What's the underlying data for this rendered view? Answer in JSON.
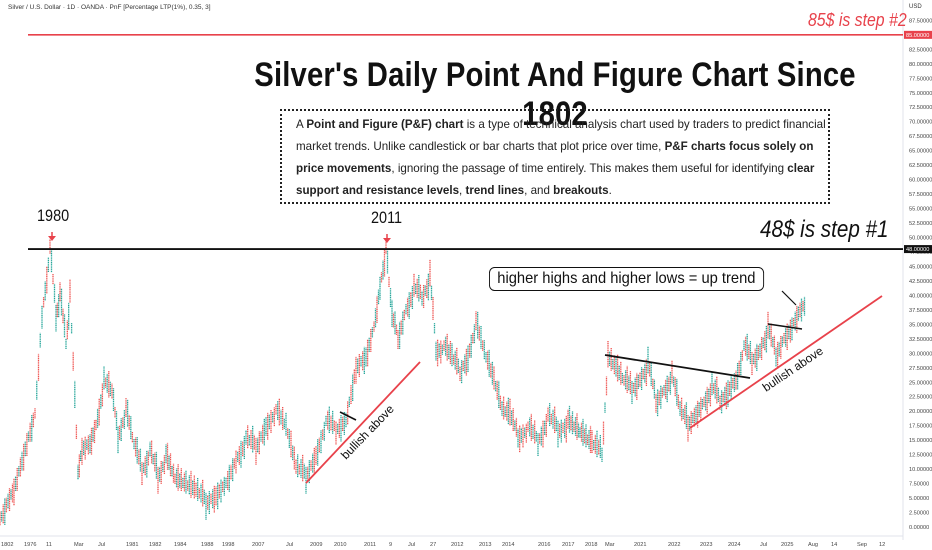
{
  "header": {
    "symbol_line": "Silver / U.S. Dollar · 1D · OANDA · PnF [Percentage LTP(1%), 0.35, 3]",
    "currency": "USD"
  },
  "title": "Silver's Daily Point And Figure Chart Since 1802",
  "description": {
    "p1": "A ",
    "b1": "Point and Figure (P&F) chart",
    "p2": " is a type of technical analysis chart used by traders to predict financial market trends. Unlike candlestick or bar charts that plot price over time, ",
    "b2": "P&F charts focus solely on price movements",
    "p3": ", ignoring the passage of time entirely. This makes them useful for identifying ",
    "b3": "clear support and resistance levels",
    "p4": ", ",
    "b4": "trend lines",
    "p5": ", and ",
    "b5": "breakouts",
    "p6": "."
  },
  "annotations": {
    "step2": "85$ is step #2",
    "step1": "48$ is step #1",
    "callout": "higher highs and higher lows = up trend",
    "year_1980": "1980",
    "year_2011": "2011",
    "bullish_1": "bullish above",
    "bullish_2": "bullish above"
  },
  "colors": {
    "up": "#26a69a",
    "down": "#ef5350",
    "accent_red": "#e8424b",
    "marker_red": "#e8424b",
    "line_black": "#111111"
  },
  "chart_data": {
    "type": "point-and-figure",
    "y_axis": {
      "scale": "linear",
      "ylim": [
        0,
        87.5
      ],
      "ticks": [
        "87.50000",
        "85.00000",
        "82.50000",
        "80.00000",
        "77.50000",
        "75.00000",
        "72.50000",
        "70.00000",
        "67.50000",
        "65.00000",
        "62.50000",
        "60.00000",
        "57.50000",
        "55.00000",
        "52.50000",
        "50.00000",
        "48.00000",
        "47.50000",
        "45.00000",
        "42.50000",
        "40.00000",
        "37.50000",
        "35.00000",
        "32.50000",
        "30.00000",
        "27.50000",
        "25.00000",
        "22.50000",
        "20.00000",
        "17.50000",
        "15.00000",
        "12.50000",
        "10.00000",
        "7.50000",
        "5.00000",
        "2.50000",
        "0.00000"
      ]
    },
    "x_axis": {
      "ticks": [
        "1802",
        "1976",
        "11",
        "Mar",
        "Jul",
        "1981",
        "1982",
        "1984",
        "1988",
        "1998",
        "2007",
        "Jul",
        "2009",
        "2010",
        "2011",
        "9",
        "Jul",
        "27",
        "2012",
        "2013",
        "2014",
        "2016",
        "2017",
        "2018",
        "Mar",
        "2021",
        "2022",
        "2023",
        "2024",
        "Jul",
        "2025",
        "Aug",
        "14",
        "Sep",
        "12"
      ]
    },
    "horizontal_levels": [
      {
        "value": 85,
        "label": "85.00000",
        "color": "#e8424b"
      },
      {
        "value": 48,
        "label": "48.00000",
        "color": "#111111"
      }
    ],
    "approx_column_path": [
      {
        "x": 0,
        "v": 1.5
      },
      {
        "x": 8,
        "v": 5
      },
      {
        "x": 14,
        "v": 7
      },
      {
        "x": 22,
        "v": 12
      },
      {
        "x": 35,
        "v": 20
      },
      {
        "x": 42,
        "v": 37
      },
      {
        "x": 50,
        "v": 48
      },
      {
        "x": 56,
        "v": 37
      },
      {
        "x": 60,
        "v": 40
      },
      {
        "x": 66,
        "v": 32
      },
      {
        "x": 70,
        "v": 40
      },
      {
        "x": 78,
        "v": 10
      },
      {
        "x": 82,
        "v": 14
      },
      {
        "x": 90,
        "v": 15
      },
      {
        "x": 96,
        "v": 18
      },
      {
        "x": 104,
        "v": 25
      },
      {
        "x": 112,
        "v": 23
      },
      {
        "x": 118,
        "v": 16
      },
      {
        "x": 126,
        "v": 20
      },
      {
        "x": 134,
        "v": 14
      },
      {
        "x": 142,
        "v": 10
      },
      {
        "x": 150,
        "v": 13
      },
      {
        "x": 158,
        "v": 9
      },
      {
        "x": 166,
        "v": 12
      },
      {
        "x": 175,
        "v": 8
      },
      {
        "x": 186,
        "v": 7
      },
      {
        "x": 196,
        "v": 6
      },
      {
        "x": 206,
        "v": 4.5
      },
      {
        "x": 216,
        "v": 6
      },
      {
        "x": 226,
        "v": 8
      },
      {
        "x": 236,
        "v": 12
      },
      {
        "x": 246,
        "v": 15
      },
      {
        "x": 256,
        "v": 14
      },
      {
        "x": 266,
        "v": 18
      },
      {
        "x": 276,
        "v": 20
      },
      {
        "x": 286,
        "v": 17
      },
      {
        "x": 296,
        "v": 10
      },
      {
        "x": 306,
        "v": 9
      },
      {
        "x": 316,
        "v": 13
      },
      {
        "x": 326,
        "v": 18
      },
      {
        "x": 336,
        "v": 17
      },
      {
        "x": 346,
        "v": 19
      },
      {
        "x": 356,
        "v": 28
      },
      {
        "x": 366,
        "v": 30
      },
      {
        "x": 374,
        "v": 35
      },
      {
        "x": 380,
        "v": 42
      },
      {
        "x": 386,
        "v": 48
      },
      {
        "x": 392,
        "v": 36
      },
      {
        "x": 398,
        "v": 33
      },
      {
        "x": 406,
        "v": 38
      },
      {
        "x": 414,
        "v": 41
      },
      {
        "x": 422,
        "v": 40
      },
      {
        "x": 430,
        "v": 43
      },
      {
        "x": 436,
        "v": 31
      },
      {
        "x": 444,
        "v": 31
      },
      {
        "x": 452,
        "v": 29
      },
      {
        "x": 460,
        "v": 27
      },
      {
        "x": 468,
        "v": 30
      },
      {
        "x": 476,
        "v": 35
      },
      {
        "x": 486,
        "v": 29
      },
      {
        "x": 494,
        "v": 25
      },
      {
        "x": 502,
        "v": 20
      },
      {
        "x": 510,
        "v": 19
      },
      {
        "x": 518,
        "v": 16
      },
      {
        "x": 528,
        "v": 17
      },
      {
        "x": 538,
        "v": 15
      },
      {
        "x": 548,
        "v": 19
      },
      {
        "x": 558,
        "v": 17
      },
      {
        "x": 568,
        "v": 18
      },
      {
        "x": 580,
        "v": 16
      },
      {
        "x": 592,
        "v": 14
      },
      {
        "x": 602,
        "v": 13
      },
      {
        "x": 608,
        "v": 29
      },
      {
        "x": 616,
        "v": 27
      },
      {
        "x": 624,
        "v": 25
      },
      {
        "x": 632,
        "v": 24
      },
      {
        "x": 640,
        "v": 26
      },
      {
        "x": 648,
        "v": 28
      },
      {
        "x": 656,
        "v": 22
      },
      {
        "x": 664,
        "v": 24
      },
      {
        "x": 672,
        "v": 26
      },
      {
        "x": 680,
        "v": 20
      },
      {
        "x": 688,
        "v": 18
      },
      {
        "x": 696,
        "v": 20
      },
      {
        "x": 704,
        "v": 22
      },
      {
        "x": 712,
        "v": 24
      },
      {
        "x": 720,
        "v": 22
      },
      {
        "x": 728,
        "v": 24
      },
      {
        "x": 736,
        "v": 26
      },
      {
        "x": 744,
        "v": 31
      },
      {
        "x": 752,
        "v": 29
      },
      {
        "x": 760,
        "v": 31
      },
      {
        "x": 768,
        "v": 34
      },
      {
        "x": 776,
        "v": 30
      },
      {
        "x": 784,
        "v": 33
      },
      {
        "x": 792,
        "v": 35
      },
      {
        "x": 800,
        "v": 38
      },
      {
        "x": 806,
        "v": 39
      }
    ]
  }
}
